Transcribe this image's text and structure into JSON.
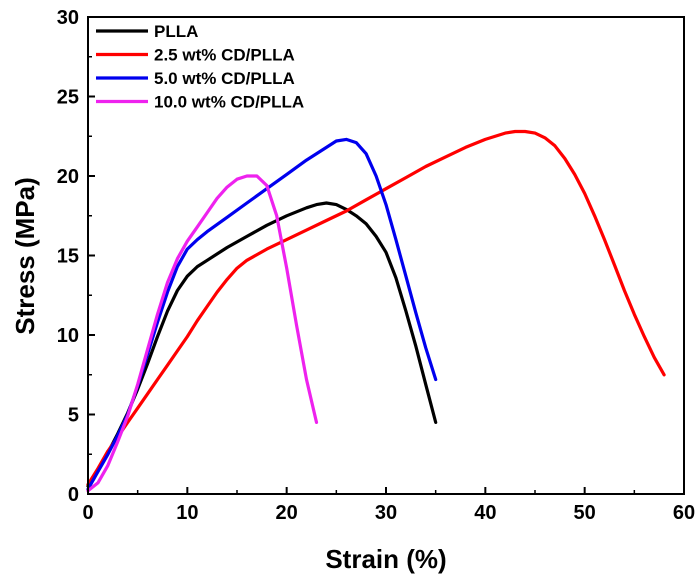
{
  "chart_data": {
    "type": "line",
    "title": "",
    "xlabel": "Strain (%)",
    "ylabel": "Stress (MPa)",
    "xlim": [
      0,
      60
    ],
    "ylim": [
      0,
      30
    ],
    "xticks": [
      0,
      10,
      20,
      30,
      40,
      50,
      60
    ],
    "yticks": [
      0,
      5,
      10,
      15,
      20,
      25,
      30
    ],
    "grid": false,
    "legend_position": "top-left",
    "series": [
      {
        "name": "PLLA",
        "color": "#000000",
        "x": [
          0,
          1,
          2,
          3,
          4,
          5,
          6,
          7,
          8,
          9,
          10,
          11,
          12,
          14,
          16,
          18,
          20,
          22,
          23,
          24,
          25,
          26,
          27,
          28,
          29,
          30,
          31,
          32,
          33,
          34,
          35
        ],
        "y": [
          0.5,
          1.5,
          2.6,
          3.8,
          5.1,
          6.6,
          8.2,
          9.9,
          11.5,
          12.8,
          13.7,
          14.3,
          14.7,
          15.5,
          16.2,
          16.9,
          17.5,
          18.0,
          18.2,
          18.3,
          18.2,
          17.9,
          17.5,
          17.0,
          16.2,
          15.2,
          13.6,
          11.5,
          9.3,
          6.9,
          4.5
        ]
      },
      {
        "name": "2.5 wt% CD/PLLA",
        "color": "#ff0000",
        "x": [
          0,
          1,
          2,
          3,
          4,
          5,
          6,
          7,
          8,
          9,
          10,
          11,
          12,
          13,
          14,
          15,
          16,
          18,
          20,
          22,
          24,
          26,
          28,
          30,
          32,
          34,
          36,
          38,
          40,
          42,
          43,
          44,
          45,
          46,
          47,
          48,
          49,
          50,
          51,
          52,
          53,
          54,
          55,
          56,
          57,
          58
        ],
        "y": [
          0.6,
          1.6,
          2.7,
          3.6,
          4.5,
          5.4,
          6.3,
          7.2,
          8.1,
          9.0,
          9.9,
          10.9,
          11.8,
          12.7,
          13.5,
          14.2,
          14.7,
          15.4,
          16.0,
          16.6,
          17.2,
          17.8,
          18.5,
          19.2,
          19.9,
          20.6,
          21.2,
          21.8,
          22.3,
          22.7,
          22.8,
          22.8,
          22.7,
          22.4,
          21.9,
          21.1,
          20.1,
          18.9,
          17.5,
          16.0,
          14.4,
          12.8,
          11.3,
          9.9,
          8.6,
          7.5
        ]
      },
      {
        "name": "5.0 wt% CD/PLLA",
        "color": "#0000ee",
        "x": [
          0,
          1,
          2,
          3,
          4,
          5,
          6,
          7,
          8,
          9,
          10,
          11,
          12,
          14,
          16,
          18,
          20,
          22,
          24,
          25,
          26,
          27,
          28,
          29,
          30,
          31,
          32,
          33,
          34,
          35
        ],
        "y": [
          0.3,
          1.4,
          2.5,
          3.7,
          5.0,
          6.8,
          8.8,
          10.8,
          12.7,
          14.3,
          15.4,
          16.0,
          16.5,
          17.4,
          18.3,
          19.2,
          20.1,
          21.0,
          21.8,
          22.2,
          22.3,
          22.1,
          21.4,
          20.0,
          18.2,
          16.0,
          13.7,
          11.4,
          9.2,
          7.2
        ]
      },
      {
        "name": "10.0 wt% CD/PLLA",
        "color": "#ee22ee",
        "x": [
          0,
          1,
          2,
          3,
          4,
          5,
          6,
          7,
          8,
          9,
          10,
          11,
          12,
          13,
          14,
          15,
          16,
          17,
          18,
          19,
          20,
          21,
          22,
          23
        ],
        "y": [
          0.2,
          0.7,
          1.8,
          3.3,
          4.9,
          6.9,
          9.1,
          11.3,
          13.3,
          14.8,
          15.9,
          16.8,
          17.7,
          18.6,
          19.3,
          19.8,
          20.0,
          20.0,
          19.4,
          17.5,
          14.2,
          10.6,
          7.2,
          4.5
        ]
      }
    ]
  }
}
